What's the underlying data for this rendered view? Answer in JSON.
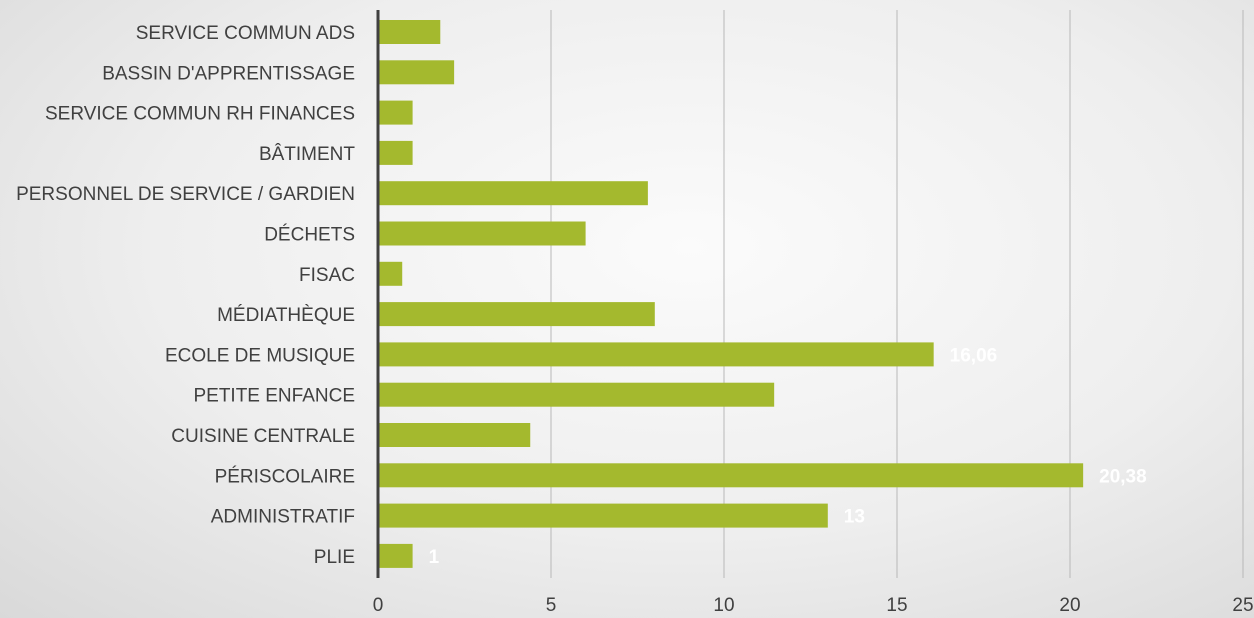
{
  "chart_data": {
    "type": "bar",
    "orientation": "horizontal",
    "categories": [
      "SERVICE COMMUN ADS",
      "BASSIN  D'APPRENTISSAGE",
      "SERVICE COMMUN RH FINANCES",
      "BÂTIMENT",
      "PERSONNEL DE SERVICE / GARDIEN",
      "DÉCHETS",
      "FISAC",
      "MÉDIATHÈQUE",
      "ECOLE DE MUSIQUE",
      "PETITE ENFANCE",
      "CUISINE CENTRALE",
      "PÉRISCOLAIRE",
      "ADMINISTRATIF",
      "PLIE"
    ],
    "values": [
      1.8,
      2.2,
      1,
      1,
      7.8,
      6,
      0.7,
      8,
      16.06,
      11.45,
      4.4,
      20.38,
      13,
      1
    ],
    "data_labels": [
      "",
      "",
      "",
      "",
      "",
      "",
      "",
      "",
      "16,06",
      "",
      "",
      "20,38",
      "13",
      "1"
    ],
    "xlim": [
      0,
      25
    ],
    "x_ticks": [
      "0",
      "5",
      "10",
      "15",
      "20",
      "25"
    ],
    "grid": true,
    "bar_color": "#a4b92e",
    "axis_color": "#404040",
    "grid_color": "#b8b8b8",
    "title": "",
    "xlabel": "",
    "ylabel": ""
  }
}
